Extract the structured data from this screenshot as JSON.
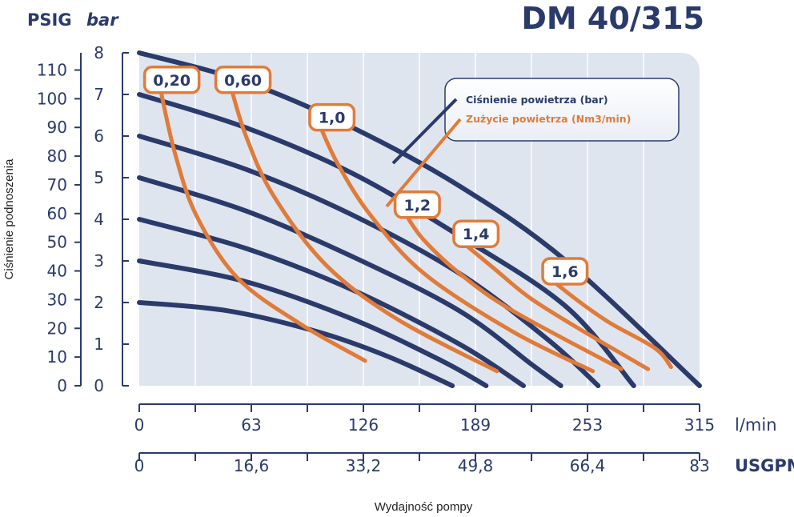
{
  "chart_data": {
    "type": "line",
    "title": "DM 40/315",
    "xlabel": "Wydajność pompy",
    "ylabel": "Ciśnienie podnoszenia",
    "x_unit_primary": "l/min",
    "x_unit_secondary": "USGPM",
    "y_unit_primary": "bar",
    "y_unit_secondary": "PSIG",
    "xlim": [
      0,
      315
    ],
    "ylim": [
      0,
      8
    ],
    "x_ticks": [
      "0",
      "63",
      "126",
      "189",
      "253",
      "315"
    ],
    "x_ticks_secondary": [
      "0",
      "16,6",
      "33,2",
      "49,8",
      "66,4",
      "83"
    ],
    "y_ticks": [
      "0",
      "1",
      "2",
      "3",
      "4",
      "5",
      "6",
      "7",
      "8"
    ],
    "y_ticks_secondary": [
      "0",
      "10",
      "20",
      "30",
      "40",
      "50",
      "60",
      "70",
      "80",
      "90",
      "100",
      "110"
    ],
    "psig_per_bar": 14.5,
    "legend": {
      "entries": [
        {
          "label": "Ciśnienie powietrza (bar)",
          "color": "#2a3a6b"
        },
        {
          "label": "Zużycie powietrza (Nm3/min)",
          "color": "#e07b39"
        }
      ],
      "placement": "top-right"
    },
    "pressure_series": [
      {
        "points": [
          [
            0,
            8.0
          ],
          [
            60,
            7.3
          ],
          [
            120,
            6.2
          ],
          [
            180,
            4.8
          ],
          [
            240,
            3.0
          ],
          [
            315,
            0.0
          ]
        ]
      },
      {
        "points": [
          [
            0,
            7.0
          ],
          [
            60,
            6.2
          ],
          [
            120,
            5.1
          ],
          [
            180,
            3.6
          ],
          [
            240,
            1.9
          ],
          [
            278,
            0.0
          ]
        ]
      },
      {
        "points": [
          [
            0,
            6.0
          ],
          [
            60,
            5.2
          ],
          [
            120,
            4.1
          ],
          [
            180,
            2.7
          ],
          [
            230,
            1.1
          ],
          [
            258,
            0.0
          ]
        ]
      },
      {
        "points": [
          [
            0,
            5.0
          ],
          [
            60,
            4.2
          ],
          [
            120,
            3.1
          ],
          [
            180,
            1.8
          ],
          [
            221,
            0.5
          ],
          [
            237,
            0.0
          ]
        ]
      },
      {
        "points": [
          [
            0,
            4.0
          ],
          [
            60,
            3.3
          ],
          [
            120,
            2.3
          ],
          [
            180,
            1.0
          ],
          [
            216,
            0.0
          ]
        ]
      },
      {
        "points": [
          [
            0,
            3.0
          ],
          [
            60,
            2.5
          ],
          [
            120,
            1.6
          ],
          [
            170,
            0.6
          ],
          [
            195,
            0.0
          ]
        ]
      },
      {
        "points": [
          [
            0,
            2.0
          ],
          [
            50,
            1.8
          ],
          [
            100,
            1.3
          ],
          [
            140,
            0.7
          ],
          [
            176,
            0.0
          ]
        ]
      }
    ],
    "consumption_series": [
      {
        "label": "0,20",
        "points": [
          [
            12,
            7.1
          ],
          [
            20,
            5.6
          ],
          [
            32,
            4.1
          ],
          [
            55,
            2.6
          ],
          [
            90,
            1.5
          ],
          [
            127,
            0.6
          ]
        ]
      },
      {
        "label": "0,60",
        "points": [
          [
            52,
            7.1
          ],
          [
            60,
            6.0
          ],
          [
            75,
            4.6
          ],
          [
            105,
            2.9
          ],
          [
            145,
            1.6
          ],
          [
            201,
            0.35
          ]
        ]
      },
      {
        "label": "1,0",
        "points": [
          [
            102,
            6.2
          ],
          [
            112,
            5.3
          ],
          [
            130,
            4.1
          ],
          [
            160,
            2.7
          ],
          [
            210,
            1.3
          ],
          [
            255,
            0.35
          ]
        ]
      },
      {
        "label": "1,2",
        "points": [
          [
            150,
            4.1
          ],
          [
            160,
            3.5
          ],
          [
            180,
            2.7
          ],
          [
            210,
            1.8
          ],
          [
            271,
            0.4
          ]
        ]
      },
      {
        "label": "1,4",
        "points": [
          [
            183,
            3.4
          ],
          [
            200,
            2.8
          ],
          [
            220,
            2.1
          ],
          [
            250,
            1.3
          ],
          [
            286,
            0.4
          ]
        ]
      },
      {
        "label": "1,6",
        "points": [
          [
            233,
            2.5
          ],
          [
            248,
            2.0
          ],
          [
            265,
            1.5
          ],
          [
            290,
            0.9
          ],
          [
            299,
            0.45
          ]
        ]
      }
    ]
  }
}
